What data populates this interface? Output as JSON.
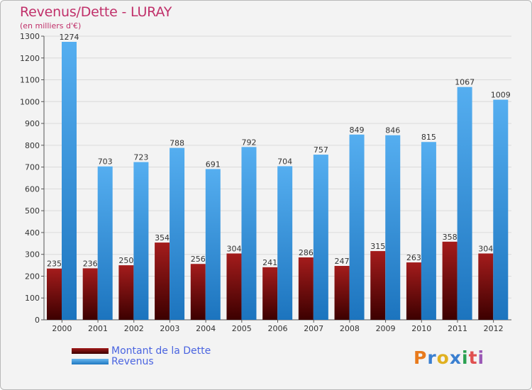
{
  "title": "Revenus/Dette - LURAY",
  "subtitle": "(en milliers d'€)",
  "logo_text": "Proxiti",
  "colors": {
    "dette": "#7a0a0a",
    "revenus": "#3d9ae0",
    "title": "#c0306a",
    "legend_text": "#4a64e0"
  },
  "chart_data": {
    "type": "bar",
    "categories": [
      "2000",
      "2001",
      "2002",
      "2003",
      "2004",
      "2005",
      "2006",
      "2007",
      "2008",
      "2009",
      "2010",
      "2011",
      "2012"
    ],
    "series": [
      {
        "name": "Montant de la Dette",
        "values": [
          235,
          236,
          250,
          354,
          256,
          304,
          241,
          286,
          247,
          315,
          263,
          358,
          304
        ]
      },
      {
        "name": "Revenus",
        "values": [
          1274,
          703,
          723,
          788,
          691,
          792,
          704,
          757,
          849,
          846,
          815,
          1067,
          1009
        ]
      }
    ],
    "ylim": [
      0,
      1300
    ],
    "yticks": [
      0,
      100,
      200,
      300,
      400,
      500,
      600,
      700,
      800,
      900,
      1000,
      1100,
      1200,
      1300
    ],
    "grid": true,
    "legend_position": "bottom-left"
  }
}
